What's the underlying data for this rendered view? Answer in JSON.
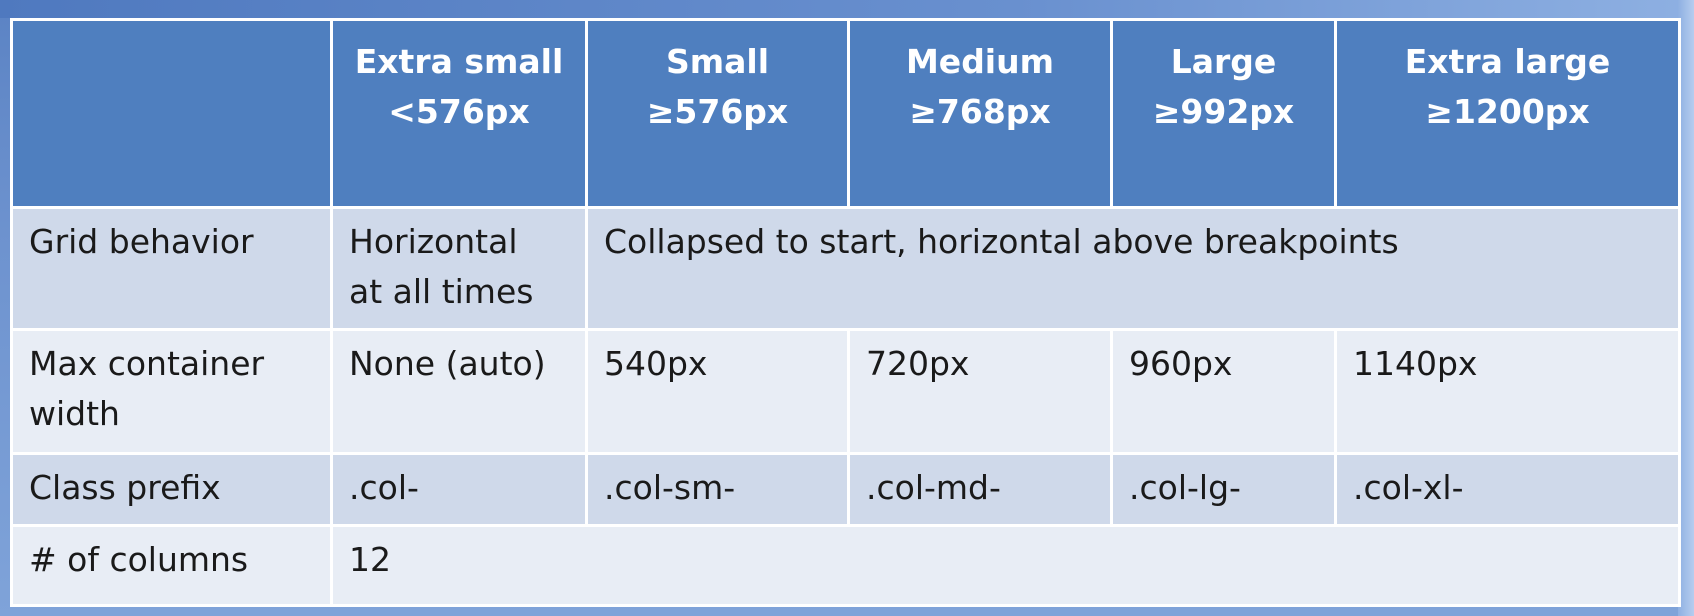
{
  "table": {
    "columns": [
      {
        "key": "label",
        "line1": "",
        "line2": ""
      },
      {
        "key": "xs",
        "line1": "Extra small",
        "line2": "<576px"
      },
      {
        "key": "sm",
        "line1": "Small",
        "line2": "≥576px"
      },
      {
        "key": "md",
        "line1": "Medium",
        "line2": "≥768px"
      },
      {
        "key": "lg",
        "line1": "Large",
        "line2": "≥992px"
      },
      {
        "key": "xl",
        "line1": "Extra large",
        "line2": "≥1200px"
      }
    ],
    "rows": {
      "grid_behavior": {
        "label": "Grid behavior",
        "xs_line1": "Horizontal",
        "xs_line2": "at all times",
        "rest": "Collapsed to start, horizontal above breakpoints"
      },
      "max_width": {
        "label_line1": "Max container",
        "label_line2": "width",
        "xs": "None (auto)",
        "sm": "540px",
        "md": "720px",
        "lg": "960px",
        "xl": "1140px"
      },
      "class_prefix": {
        "label": "Class prefix",
        "xs": ".col-",
        "sm": ".col-sm-",
        "md": ".col-md-",
        "lg": ".col-lg-",
        "xl": ".col-xl-"
      },
      "num_columns": {
        "label": "# of columns",
        "value": "12"
      }
    }
  },
  "colors": {
    "header_bg": "#4f7fbf",
    "row_dark": "#cfd9ea",
    "row_light": "#e8edf5",
    "border": "#ffffff"
  }
}
